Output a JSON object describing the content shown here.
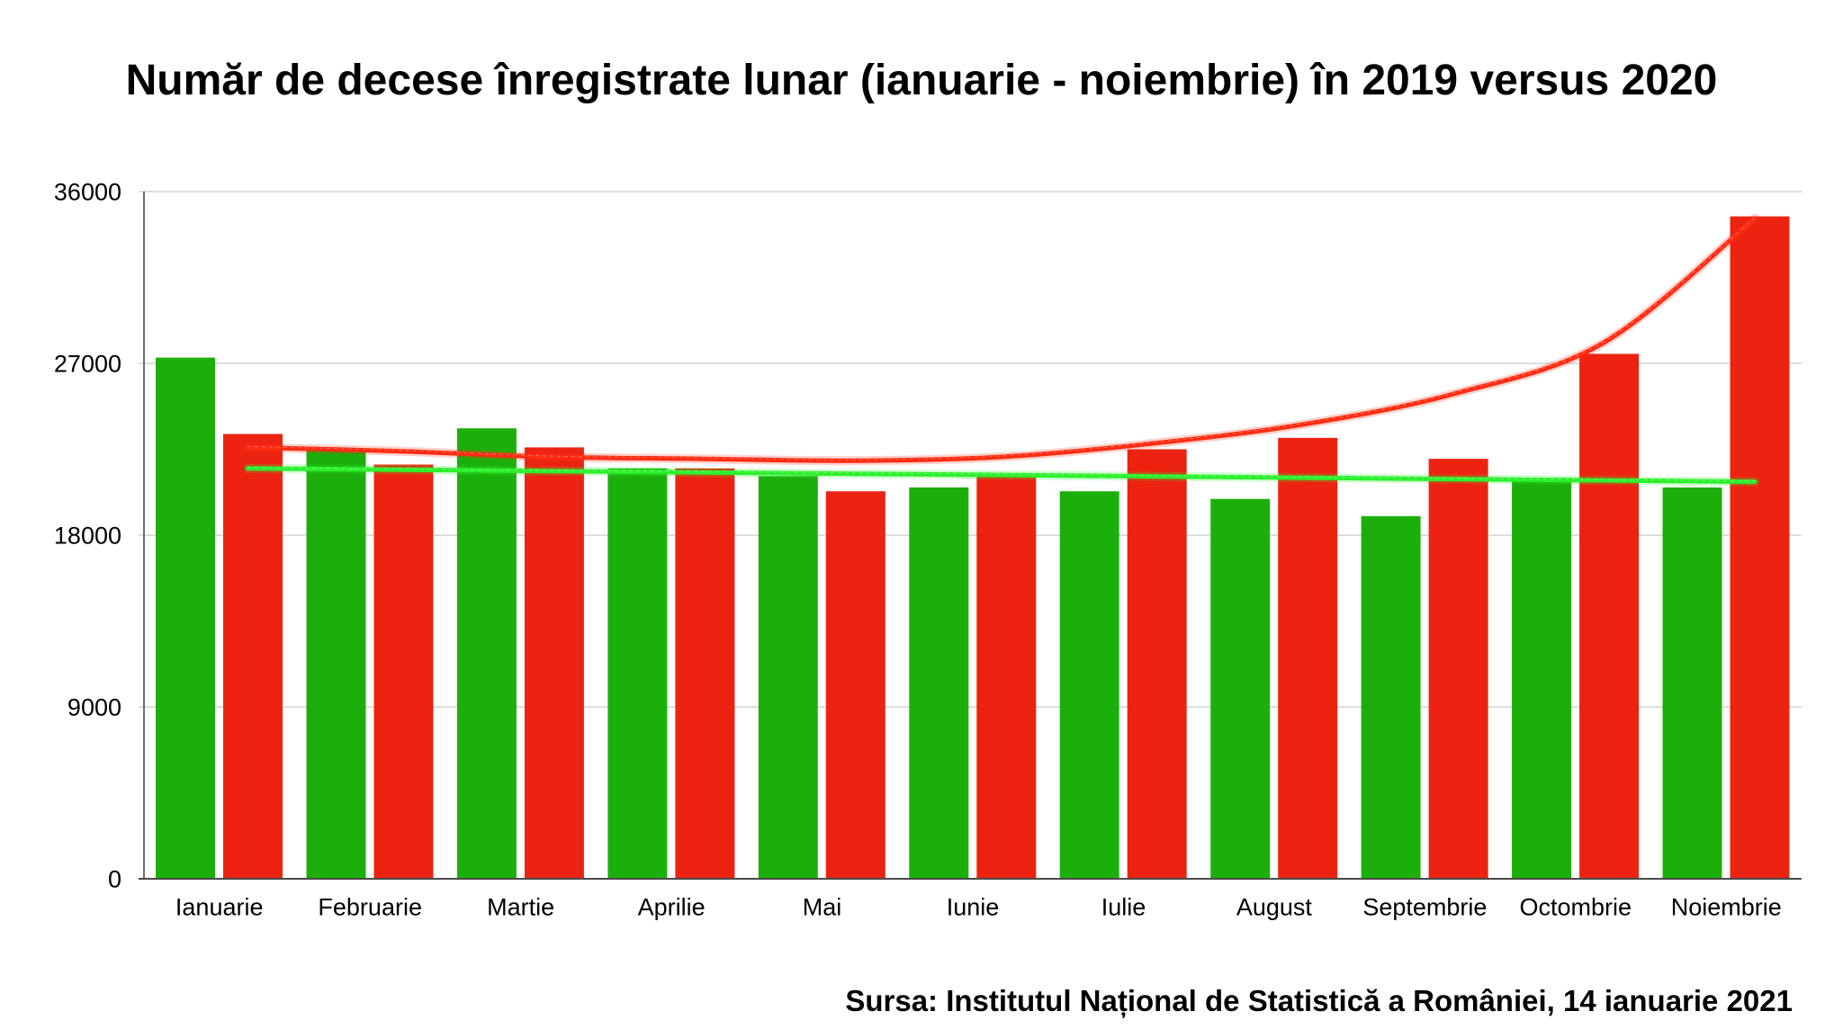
{
  "chart_data": {
    "type": "bar",
    "title": "Număr de decese înregistrate lunar (ianuarie - noiembrie) în 2019 versus 2020",
    "categories": [
      "Ianuarie",
      "Februarie",
      "Martie",
      "Aprilie",
      "Mai",
      "Iunie",
      "Iulie",
      "August",
      "Septembrie",
      "Octombrie",
      "Noiembrie"
    ],
    "series": [
      {
        "color": "#1caf0c",
        "values": [
          27300,
          22500,
          23600,
          21500,
          21100,
          20500,
          20300,
          19900,
          19000,
          21000,
          20500
        ]
      },
      {
        "color": "#ec2311",
        "values": [
          23300,
          21700,
          22600,
          21500,
          20300,
          21100,
          22500,
          23100,
          22000,
          27500,
          34700
        ]
      }
    ],
    "trend_lines": [
      {
        "color": "#ff2c12",
        "values": [
          22600,
          22400,
          22100,
          22000,
          21900,
          22100,
          22800,
          23800,
          25400,
          28100,
          34600
        ]
      },
      {
        "color": "#2cf02c",
        "values": [
          21500,
          21430,
          21360,
          21290,
          21220,
          21150,
          21080,
          21010,
          20940,
          20870,
          20800
        ]
      }
    ],
    "ylim": [
      0,
      36000
    ],
    "y_ticks": [
      0,
      9000,
      18000,
      27000,
      36000
    ],
    "grid": true,
    "legend": "none",
    "source": "Sursa: Institutul Național de Statistică a României, 14 ianuarie 2021"
  }
}
